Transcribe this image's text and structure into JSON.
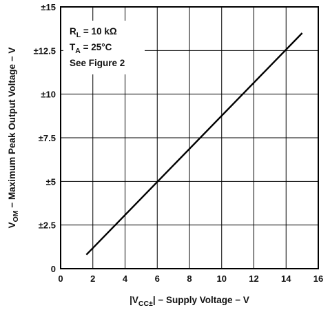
{
  "chart_data": {
    "type": "line",
    "xlabel": {
      "prefix": "|V",
      "sub": "CC±",
      "suffix": "| − Supply Voltage − V"
    },
    "ylabel": {
      "prefix": "V",
      "sub": "OM",
      "suffix": " − Maximum Peak Output Voltage − V"
    },
    "xlim": [
      0,
      16
    ],
    "ylim": [
      0,
      15
    ],
    "x_ticks": [
      0,
      2,
      4,
      6,
      8,
      10,
      12,
      14,
      16
    ],
    "x_tick_labels": [
      "0",
      "2",
      "4",
      "6",
      "8",
      "10",
      "12",
      "14",
      "16"
    ],
    "y_ticks": [
      0,
      2.5,
      5,
      7.5,
      10,
      12.5,
      15
    ],
    "y_tick_labels": [
      "0",
      "±2.5",
      "±5",
      "±7.5",
      "±10",
      "±12.5",
      "±15"
    ],
    "grid": true,
    "series": [
      {
        "x": [
          1.6,
          15.0
        ],
        "y": [
          0.8,
          13.5
        ]
      }
    ],
    "annotations": [
      {
        "prefix": "R",
        "sub": "L",
        "suffix": " = 10 kΩ"
      },
      {
        "prefix": "T",
        "sub": "A",
        "suffix": " = 25°C"
      },
      {
        "prefix": "See Figure 2",
        "sub": "",
        "suffix": ""
      }
    ]
  }
}
